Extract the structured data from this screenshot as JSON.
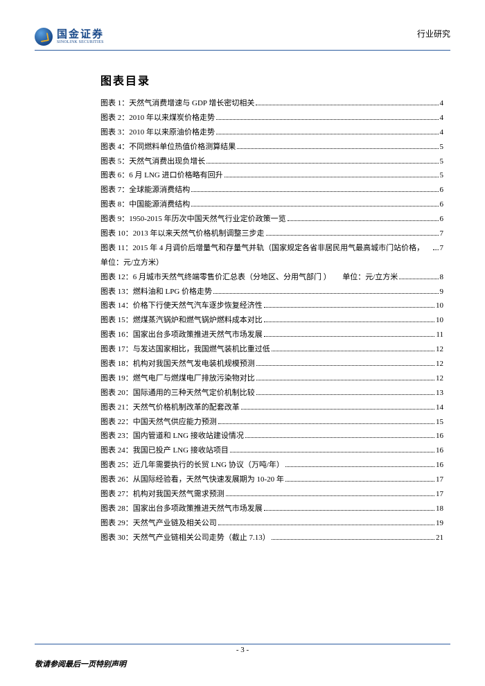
{
  "header": {
    "logo_cn": "国金证券",
    "logo_en": "SINOLINK SECURITIES",
    "right_text": "行业研究"
  },
  "section_title": "图表目录",
  "toc": [
    {
      "label": "图表 1：天然气消费增速与 GDP 增长密切相关",
      "page": "4"
    },
    {
      "label": "图表 2：2010 年以来煤炭价格走势",
      "page": "4"
    },
    {
      "label": "图表 3：2010 年以来原油价格走势",
      "page": "4"
    },
    {
      "label": "图表 4：不同燃料单位热值价格测算结果",
      "page": "5"
    },
    {
      "label": "图表 5：天然气消费出现负增长",
      "page": "5"
    },
    {
      "label": "图表 6：6 月 LNG 进口价格略有回升",
      "page": "5"
    },
    {
      "label": "图表 7：全球能源消费结构",
      "page": "6"
    },
    {
      "label": "图表 8：中国能源消费结构",
      "page": "6"
    },
    {
      "label": "图表 9：1950-2015 年历次中国天然气行业定价政策一览",
      "page": "6"
    },
    {
      "label": "图表 10：2013 年以来天然气价格机制调整三步走",
      "page": "7"
    },
    {
      "label": "图表 11：2015 年 4 月调价后增量气和存量气并轨（国家规定各省非居民用气最高城市门站价格，单位：元/立方米）",
      "page": "7"
    },
    {
      "label": "图表 12：6 月城市天然气终端零售价汇总表（分地区、分用气部门 ）　　单位：元/立方米",
      "page": "8"
    },
    {
      "label": "图表 13：燃料油和 LPG 价格走势",
      "page": "9"
    },
    {
      "label": "图表 14：价格下行使天然气汽车逐步恢复经济性",
      "page": "10"
    },
    {
      "label": "图表 15：燃煤蒸汽锅炉和燃气锅炉燃料成本对比",
      "page": "10"
    },
    {
      "label": "图表 16：国家出台多项政策推进天然气市场发展",
      "page": "11"
    },
    {
      "label": "图表 17：与发达国家相比，我国燃气装机比重过低",
      "page": "12"
    },
    {
      "label": "图表 18：机构对我国天然气发电装机规模预测",
      "page": "12"
    },
    {
      "label": "图表 19：燃气电厂与燃煤电厂排放污染物对比",
      "page": "12"
    },
    {
      "label": "图表 20：国际通用的三种天然气定价机制比较",
      "page": "13"
    },
    {
      "label": "图表 21：天然气价格机制改革的配套改革",
      "page": "14"
    },
    {
      "label": "图表 22：中国天然气供应能力预测",
      "page": "15"
    },
    {
      "label": "图表 23：国内管道和 LNG 接收站建设情况",
      "page": "16"
    },
    {
      "label": "图表 24：我国已投产 LNG 接收站项目",
      "page": "16"
    },
    {
      "label": "图表 25：近几年需要执行的长贸 LNG 协议（万吨/年）",
      "page": "16"
    },
    {
      "label": "图表 26：从国际经验看，天然气快速发展期为 10-20 年",
      "page": "17"
    },
    {
      "label": "图表 27：机构对我国天然气需求预测",
      "page": "17"
    },
    {
      "label": "图表 28：国家出台多项政策推进天然气市场发展",
      "page": "18"
    },
    {
      "label": "图表 29：天然气产业链及相关公司",
      "page": "19"
    },
    {
      "label": "图表 30：天然气产业链相关公司走势（截止 7.13）",
      "page": "21"
    }
  ],
  "page_number": "- 3 -",
  "disclaimer": "敬请参阅最后一页特别声明",
  "colors": {
    "rule": "#2a5a9e",
    "logo_dark": "#1a4a8a"
  },
  "typography": {
    "body_fontsize": 11,
    "title_fontsize": 16
  }
}
